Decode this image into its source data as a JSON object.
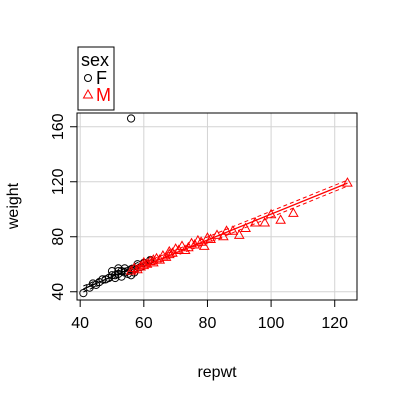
{
  "chart_data": {
    "type": "scatter",
    "xlabel": "repwt",
    "ylabel": "weight",
    "xlim": [
      39,
      127
    ],
    "ylim": [
      34,
      170
    ],
    "x_ticks": [
      40,
      60,
      80,
      100,
      120
    ],
    "y_ticks": [
      40,
      80,
      120,
      160
    ],
    "grid": true,
    "legend": {
      "title": "sex",
      "placement": "top-left",
      "entries": [
        {
          "label": "F",
          "marker": "circle",
          "color": "#000000"
        },
        {
          "label": "M",
          "marker": "triangle",
          "color": "#ff0000"
        }
      ]
    },
    "series": [
      {
        "name": "F",
        "marker": "circle",
        "color": "#000000",
        "x": [
          41,
          43,
          44,
          45,
          46,
          47,
          48,
          49,
          50,
          50,
          51,
          51,
          52,
          52,
          52,
          53,
          53,
          54,
          54,
          55,
          55,
          56,
          56,
          57,
          57,
          58,
          59,
          60,
          62,
          56
        ],
        "y": [
          39,
          43,
          46,
          45,
          47,
          49,
          49,
          50,
          52,
          55,
          52,
          50,
          53,
          57,
          55,
          51,
          55,
          54,
          57,
          55,
          53,
          56,
          52,
          57,
          54,
          60,
          58,
          61,
          63,
          166
        ],
        "fit": {
          "x": [
            41,
            63
          ],
          "y": [
            42,
            64
          ]
        }
      },
      {
        "name": "M",
        "marker": "triangle",
        "color": "#ff0000",
        "x": [
          56,
          57,
          58,
          59,
          60,
          60,
          61,
          62,
          63,
          63,
          64,
          65,
          66,
          67,
          68,
          68,
          69,
          70,
          71,
          72,
          73,
          74,
          75,
          76,
          77,
          78,
          79,
          80,
          81,
          83,
          85,
          86,
          88,
          90,
          92,
          95,
          98,
          100,
          103,
          107,
          124
        ],
        "y": [
          55,
          57,
          56,
          58,
          59,
          61,
          60,
          62,
          61,
          63,
          64,
          63,
          66,
          65,
          67,
          69,
          68,
          71,
          70,
          73,
          70,
          72,
          75,
          74,
          77,
          76,
          73,
          79,
          78,
          81,
          80,
          84,
          84,
          81,
          86,
          90,
          90,
          96,
          92,
          97,
          119
        ],
        "fit": {
          "x": [
            57,
            124
          ],
          "y": [
            56,
            119
          ]
        }
      }
    ]
  }
}
